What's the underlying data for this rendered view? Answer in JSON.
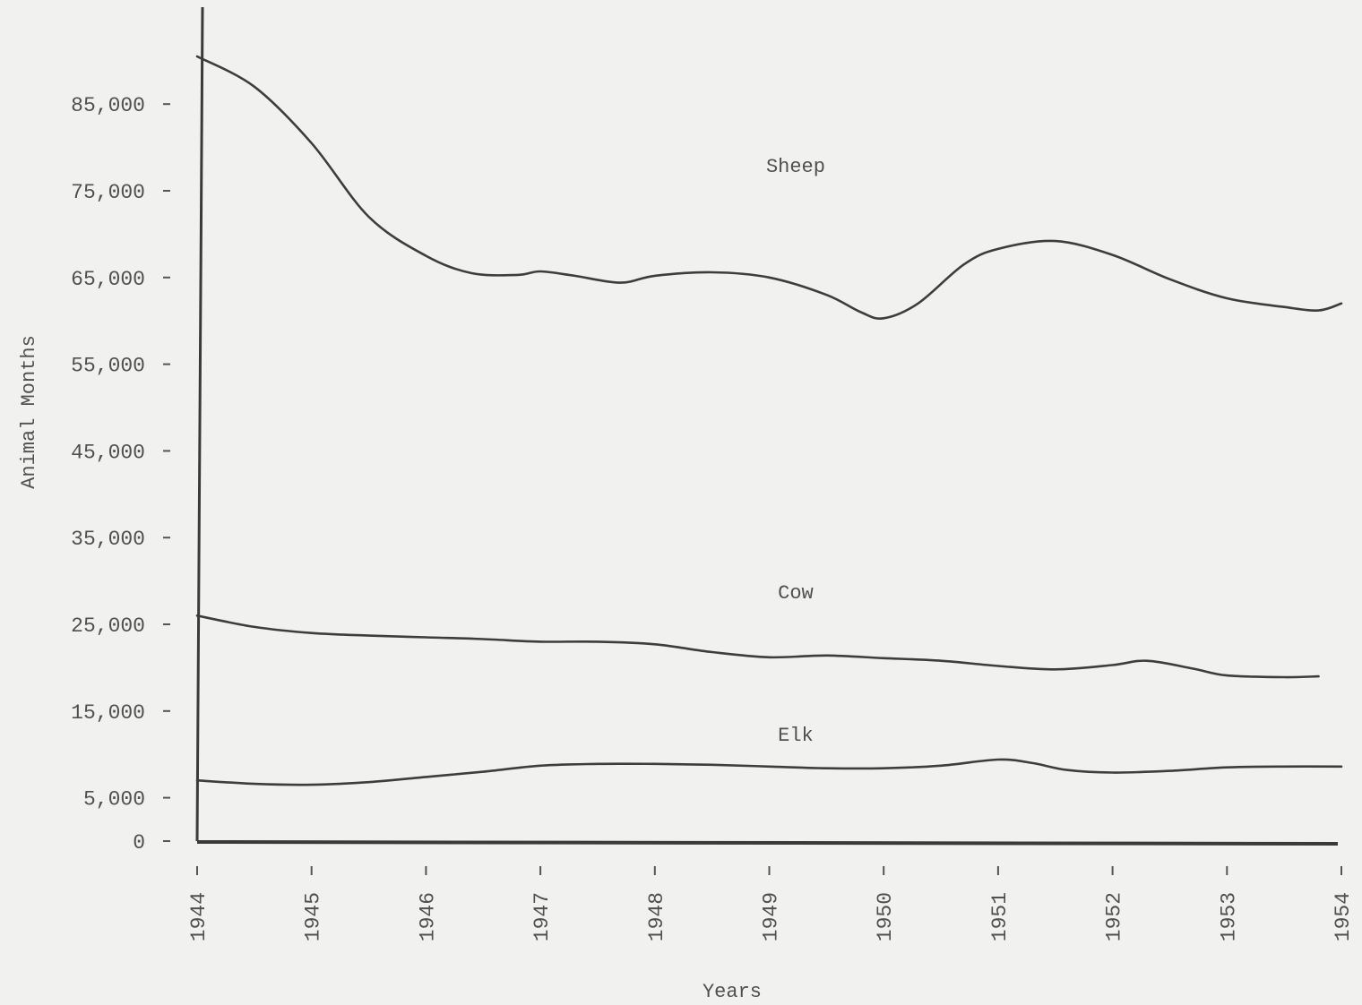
{
  "chart_data": {
    "type": "line",
    "title": "",
    "xlabel": "Years",
    "ylabel": "Animal Months",
    "xlim": [
      1944,
      1954
    ],
    "ylim": [
      0,
      95000
    ],
    "x_ticks": [
      "1944",
      "1945",
      "1946",
      "1947",
      "1948",
      "1949",
      "1950",
      "1951",
      "1952",
      "1953",
      "1954"
    ],
    "y_ticks": [
      {
        "value": 0,
        "label": "0"
      },
      {
        "value": 5000,
        "label": "5,000"
      },
      {
        "value": 15000,
        "label": "15,000"
      },
      {
        "value": 25000,
        "label": "25,000"
      },
      {
        "value": 35000,
        "label": "35,000"
      },
      {
        "value": 45000,
        "label": "45,000"
      },
      {
        "value": 55000,
        "label": "55,000"
      },
      {
        "value": 65000,
        "label": "65,000"
      },
      {
        "value": 75000,
        "label": "75,000"
      },
      {
        "value": 85000,
        "label": "85,000"
      }
    ],
    "grid": false,
    "legend": "none",
    "series": [
      {
        "name": "Sheep",
        "label_at": [
          1948.8,
          78000
        ],
        "x": [
          1944,
          1944.5,
          1945,
          1945.5,
          1946,
          1946.4,
          1946.8,
          1947,
          1947.3,
          1947.7,
          1948,
          1948.5,
          1949,
          1949.5,
          1949.8,
          1950,
          1950.3,
          1950.7,
          1951,
          1951.5,
          1952,
          1952.5,
          1953,
          1953.5,
          1953.8,
          1954
        ],
        "y": [
          90500,
          87000,
          80500,
          72000,
          67500,
          65500,
          65300,
          65700,
          65200,
          64400,
          65200,
          65600,
          65000,
          63000,
          61000,
          60300,
          62000,
          66500,
          68300,
          69200,
          67600,
          64800,
          62600,
          61600,
          61200,
          62000
        ]
      },
      {
        "name": "Cow",
        "label_at": [
          1948.8,
          28800
        ],
        "x": [
          1944,
          1944.5,
          1945,
          1945.5,
          1946,
          1946.5,
          1947,
          1947.5,
          1948,
          1948.5,
          1949,
          1949.5,
          1950,
          1950.5,
          1951,
          1951.5,
          1952,
          1952.3,
          1952.7,
          1953,
          1953.5,
          1953.8
        ],
        "y": [
          26000,
          24700,
          24000,
          23700,
          23500,
          23300,
          23000,
          23000,
          22700,
          21800,
          21200,
          21400,
          21100,
          20800,
          20200,
          19800,
          20300,
          20800,
          19900,
          19100,
          18900,
          19000
        ]
      },
      {
        "name": "Elk",
        "label_at": [
          1948.8,
          12400
        ],
        "x": [
          1944,
          1944.5,
          1945,
          1945.5,
          1946,
          1946.5,
          1947,
          1947.5,
          1948,
          1948.5,
          1949,
          1949.5,
          1950,
          1950.5,
          1951,
          1951.3,
          1951.6,
          1952,
          1952.5,
          1953,
          1953.5,
          1954
        ],
        "y": [
          7000,
          6600,
          6500,
          6800,
          7400,
          8000,
          8700,
          8900,
          8900,
          8800,
          8600,
          8400,
          8400,
          8700,
          9400,
          9000,
          8200,
          7900,
          8100,
          8500,
          8600,
          8600
        ]
      }
    ]
  }
}
